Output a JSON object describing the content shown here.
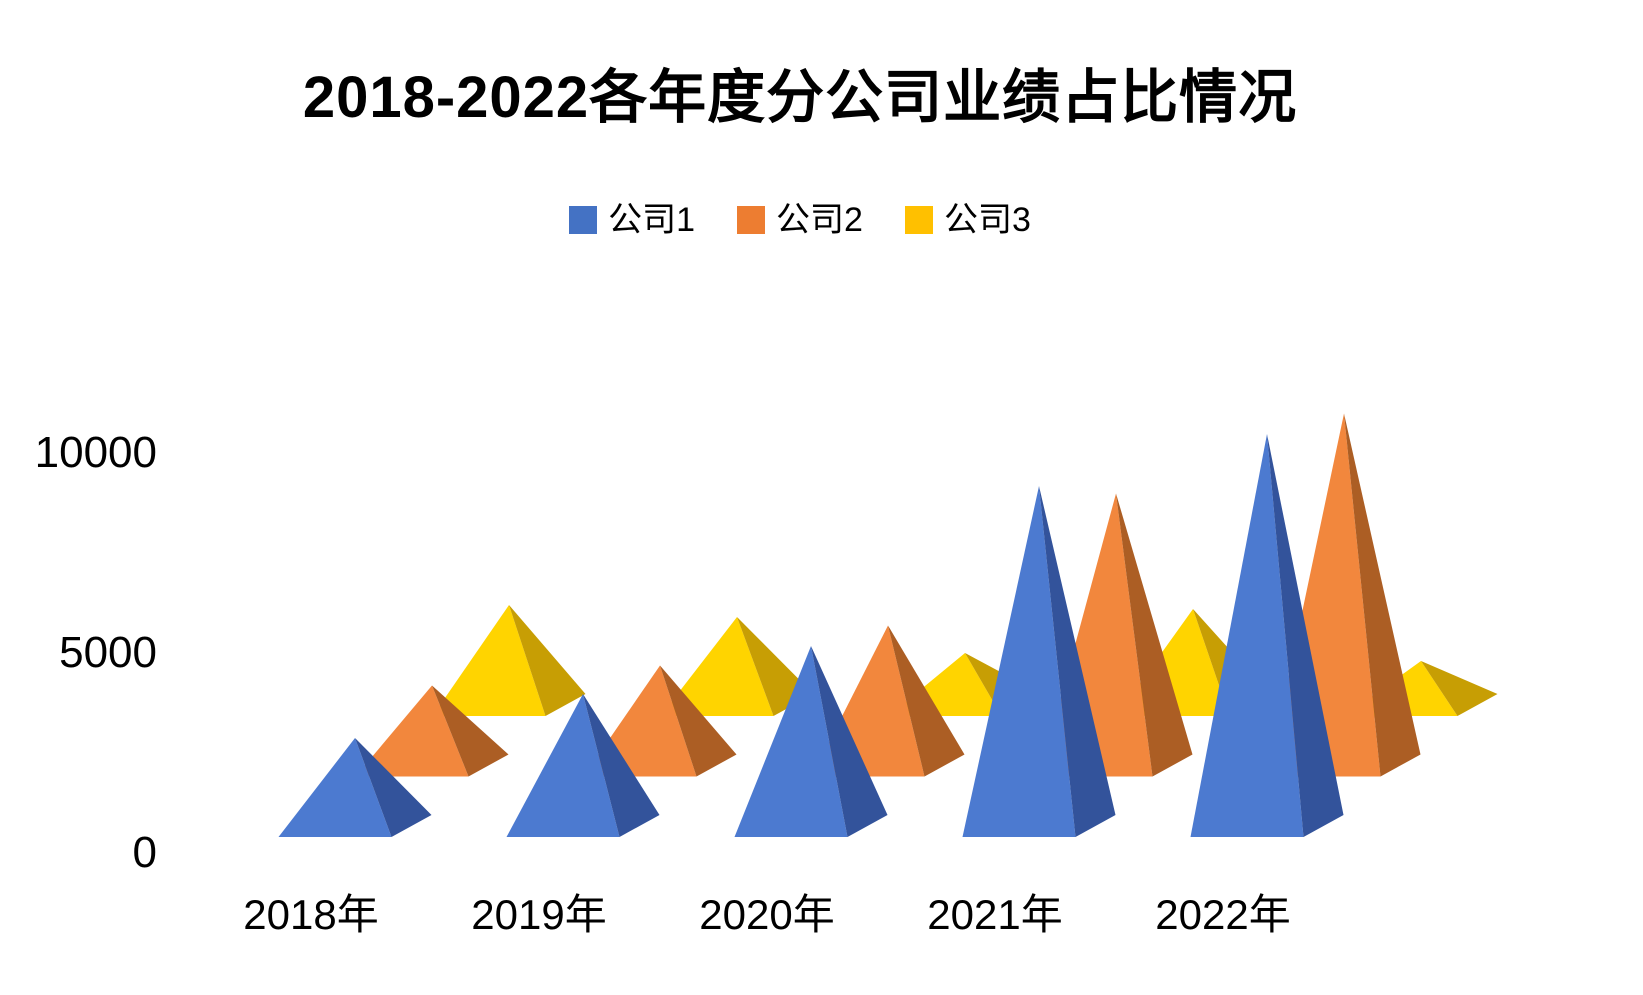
{
  "title": "2018-2022各年度分公司业绩占比情况",
  "chart_data": {
    "type": "bar",
    "variant": "3d-pyramid-columns",
    "title": "2018-2022各年度分公司业绩占比情况",
    "categories": [
      "2018年",
      "2019年",
      "2020年",
      "2021年",
      "2022年"
    ],
    "series": [
      {
        "name": "公司1",
        "color": "#4472C4",
        "color_light": "#4C7AD0",
        "color_dark": "#33539B",
        "values": [
          2200,
          3300,
          4500,
          8500,
          9800
        ]
      },
      {
        "name": "公司2",
        "color": "#ED7D31",
        "color_light": "#F2873D",
        "color_dark": "#AC5E24",
        "values": [
          2000,
          2500,
          3500,
          6800,
          8800
        ]
      },
      {
        "name": "公司3",
        "color": "#FFC000",
        "color_light": "#FFD400",
        "color_dark": "#C79E04",
        "values": [
          2500,
          2200,
          1300,
          2400,
          1100
        ]
      }
    ],
    "yticks": [
      0,
      5000,
      10000
    ],
    "ylim": [
      0,
      10000
    ],
    "xlabel": "",
    "ylabel": "",
    "grid": false,
    "legend_position": "top",
    "background": "#FFFFFF",
    "text_color": "#000000"
  }
}
